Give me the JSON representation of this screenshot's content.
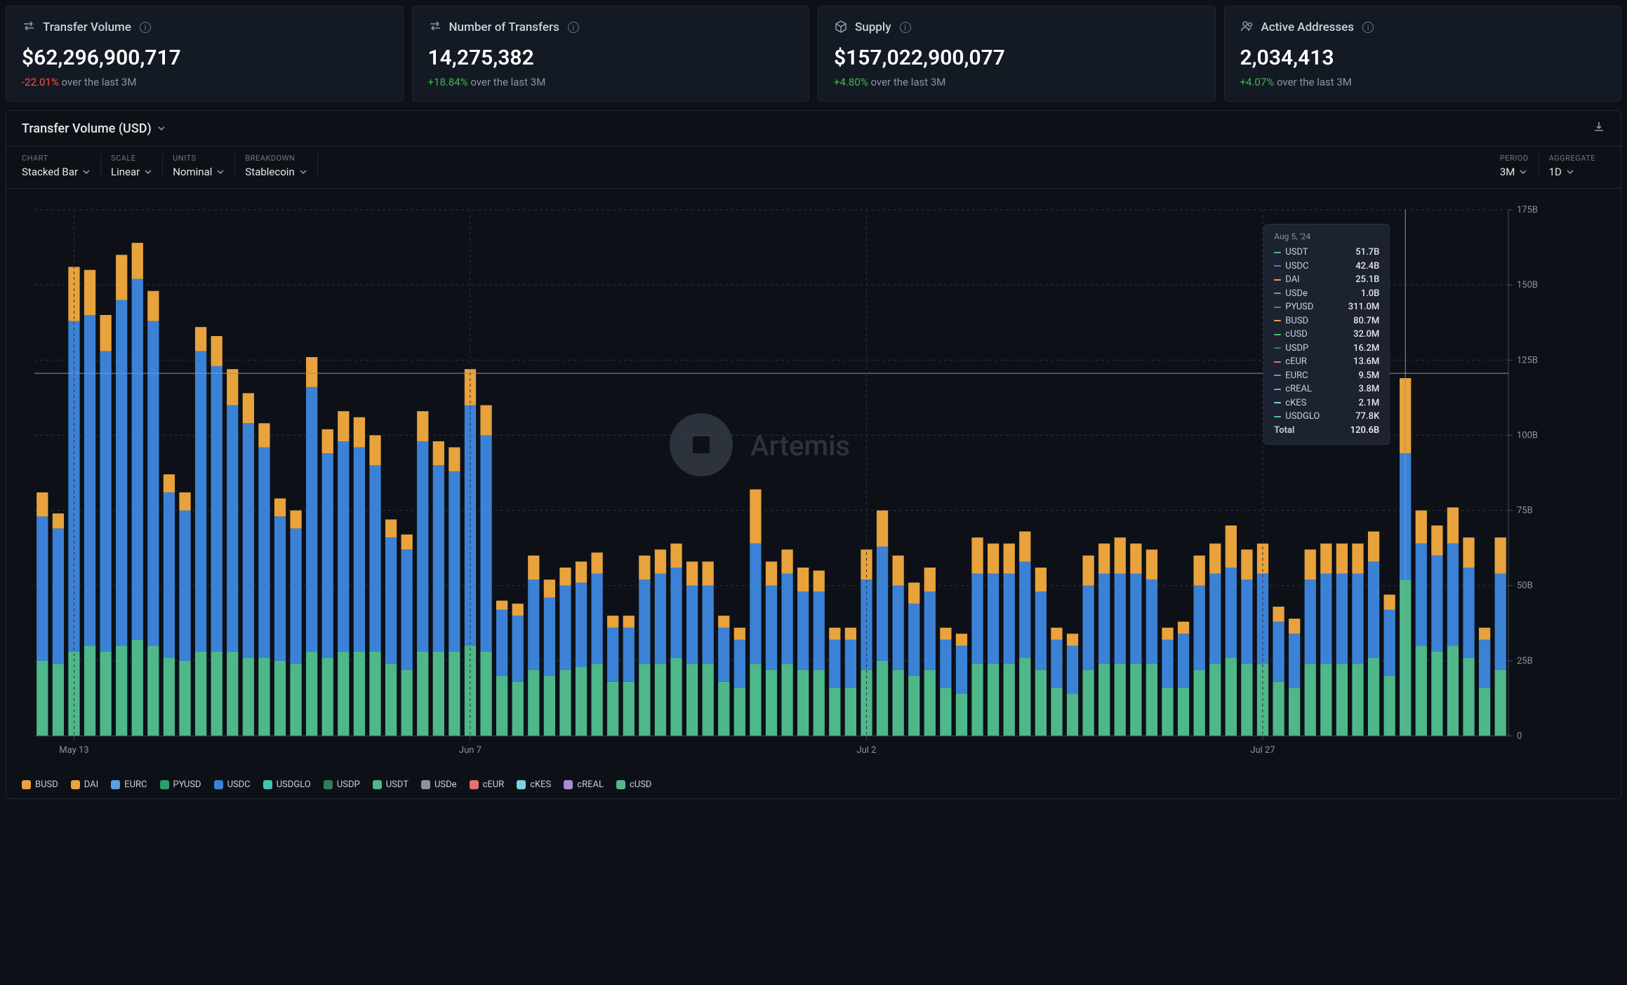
{
  "metrics": [
    {
      "icon": "transfer",
      "title": "Transfer Volume",
      "value": "$62,296,900,717",
      "change_pct": "-22.01%",
      "change_dir": "neg",
      "period_text": "over the last 3M"
    },
    {
      "icon": "transfer",
      "title": "Number of Transfers",
      "value": "14,275,382",
      "change_pct": "+18.84%",
      "change_dir": "pos",
      "period_text": "over the last 3M"
    },
    {
      "icon": "supply",
      "title": "Supply",
      "value": "$157,022,900,077",
      "change_pct": "+4.80%",
      "change_dir": "pos",
      "period_text": "over the last 3M"
    },
    {
      "icon": "users",
      "title": "Active Addresses",
      "value": "2,034,413",
      "change_pct": "+4.07%",
      "change_dir": "pos",
      "period_text": "over the last 3M"
    }
  ],
  "panel": {
    "title": "Transfer Volume (USD)"
  },
  "controls": {
    "chart": {
      "label": "CHART",
      "value": "Stacked Bar"
    },
    "scale": {
      "label": "SCALE",
      "value": "Linear"
    },
    "units": {
      "label": "UNITS",
      "value": "Nominal"
    },
    "breakdown": {
      "label": "BREAKDOWN",
      "value": "Stablecoin"
    },
    "period": {
      "label": "PERIOD",
      "value": "3M"
    },
    "aggregate": {
      "label": "AGGREGATE",
      "value": "1D"
    }
  },
  "chart": {
    "type": "stacked-bar",
    "ylim": [
      0,
      175
    ],
    "y_ticks": [
      0,
      25,
      50,
      75,
      100,
      125,
      150,
      175
    ],
    "y_tick_labels": [
      "0",
      "25B",
      "50B",
      "75B",
      "100B",
      "125B",
      "150B",
      "175B"
    ],
    "ref_line": 120.6,
    "x_tick_labels": [
      "May 13",
      "Jun 7",
      "Jul 2",
      "Jul 27"
    ],
    "x_tick_positions": [
      2,
      27,
      52,
      77
    ],
    "background_color": "#0d1117",
    "grid_color": "#2a3240",
    "watermark": "Artemis",
    "cursor_index": 86,
    "colors": {
      "USDT": "#4fb88a",
      "USDC": "#3b82d6",
      "DAI": "#e8a33d",
      "USDe": "#8b949e",
      "PYUSD": "#2e9e6f",
      "BUSD": "#e8a33d",
      "cUSD": "#4fb88a",
      "USDP": "#2e7d5a",
      "cEUR": "#e76f6f",
      "EURC": "#5aa0e0",
      "cREAL": "#a98bd6",
      "cKES": "#7dd3e0",
      "USDGLO": "#3ec7b0",
      "Total": "#ffffff"
    },
    "bar_width": 0.72,
    "series_order": [
      "USDT",
      "USDC",
      "DAI"
    ],
    "bars": [
      {
        "usdt": 25,
        "usdc": 48,
        "dai": 8
      },
      {
        "usdt": 24,
        "usdc": 45,
        "dai": 5
      },
      {
        "usdt": 28,
        "usdc": 110,
        "dai": 18
      },
      {
        "usdt": 30,
        "usdc": 110,
        "dai": 15
      },
      {
        "usdt": 28,
        "usdc": 100,
        "dai": 12
      },
      {
        "usdt": 30,
        "usdc": 115,
        "dai": 15
      },
      {
        "usdt": 32,
        "usdc": 120,
        "dai": 12
      },
      {
        "usdt": 30,
        "usdc": 108,
        "dai": 10
      },
      {
        "usdt": 26,
        "usdc": 55,
        "dai": 6
      },
      {
        "usdt": 25,
        "usdc": 50,
        "dai": 6
      },
      {
        "usdt": 28,
        "usdc": 100,
        "dai": 8
      },
      {
        "usdt": 28,
        "usdc": 95,
        "dai": 10
      },
      {
        "usdt": 28,
        "usdc": 82,
        "dai": 12
      },
      {
        "usdt": 26,
        "usdc": 78,
        "dai": 10
      },
      {
        "usdt": 26,
        "usdc": 70,
        "dai": 8
      },
      {
        "usdt": 25,
        "usdc": 48,
        "dai": 6
      },
      {
        "usdt": 24,
        "usdc": 45,
        "dai": 6
      },
      {
        "usdt": 28,
        "usdc": 88,
        "dai": 10
      },
      {
        "usdt": 26,
        "usdc": 68,
        "dai": 8
      },
      {
        "usdt": 28,
        "usdc": 70,
        "dai": 10
      },
      {
        "usdt": 28,
        "usdc": 68,
        "dai": 10
      },
      {
        "usdt": 28,
        "usdc": 62,
        "dai": 10
      },
      {
        "usdt": 24,
        "usdc": 42,
        "dai": 6
      },
      {
        "usdt": 22,
        "usdc": 40,
        "dai": 5
      },
      {
        "usdt": 28,
        "usdc": 70,
        "dai": 10
      },
      {
        "usdt": 28,
        "usdc": 62,
        "dai": 8
      },
      {
        "usdt": 28,
        "usdc": 60,
        "dai": 8
      },
      {
        "usdt": 30,
        "usdc": 80,
        "dai": 12
      },
      {
        "usdt": 28,
        "usdc": 72,
        "dai": 10
      },
      {
        "usdt": 20,
        "usdc": 22,
        "dai": 3
      },
      {
        "usdt": 18,
        "usdc": 22,
        "dai": 4
      },
      {
        "usdt": 22,
        "usdc": 30,
        "dai": 8
      },
      {
        "usdt": 20,
        "usdc": 26,
        "dai": 6
      },
      {
        "usdt": 22,
        "usdc": 28,
        "dai": 6
      },
      {
        "usdt": 23,
        "usdc": 28,
        "dai": 7
      },
      {
        "usdt": 24,
        "usdc": 30,
        "dai": 7
      },
      {
        "usdt": 18,
        "usdc": 18,
        "dai": 4
      },
      {
        "usdt": 18,
        "usdc": 18,
        "dai": 4
      },
      {
        "usdt": 24,
        "usdc": 28,
        "dai": 8
      },
      {
        "usdt": 24,
        "usdc": 30,
        "dai": 8
      },
      {
        "usdt": 26,
        "usdc": 30,
        "dai": 8
      },
      {
        "usdt": 24,
        "usdc": 26,
        "dai": 8
      },
      {
        "usdt": 24,
        "usdc": 26,
        "dai": 8
      },
      {
        "usdt": 18,
        "usdc": 18,
        "dai": 4
      },
      {
        "usdt": 16,
        "usdc": 16,
        "dai": 4
      },
      {
        "usdt": 24,
        "usdc": 40,
        "dai": 18
      },
      {
        "usdt": 22,
        "usdc": 28,
        "dai": 8
      },
      {
        "usdt": 24,
        "usdc": 30,
        "dai": 8
      },
      {
        "usdt": 22,
        "usdc": 26,
        "dai": 8
      },
      {
        "usdt": 22,
        "usdc": 26,
        "dai": 7
      },
      {
        "usdt": 16,
        "usdc": 16,
        "dai": 4
      },
      {
        "usdt": 16,
        "usdc": 16,
        "dai": 4
      },
      {
        "usdt": 22,
        "usdc": 30,
        "dai": 10
      },
      {
        "usdt": 25,
        "usdc": 38,
        "dai": 12
      },
      {
        "usdt": 22,
        "usdc": 28,
        "dai": 10
      },
      {
        "usdt": 20,
        "usdc": 24,
        "dai": 7
      },
      {
        "usdt": 22,
        "usdc": 26,
        "dai": 8
      },
      {
        "usdt": 16,
        "usdc": 16,
        "dai": 4
      },
      {
        "usdt": 14,
        "usdc": 16,
        "dai": 4
      },
      {
        "usdt": 24,
        "usdc": 30,
        "dai": 12
      },
      {
        "usdt": 24,
        "usdc": 30,
        "dai": 10
      },
      {
        "usdt": 24,
        "usdc": 30,
        "dai": 10
      },
      {
        "usdt": 26,
        "usdc": 32,
        "dai": 10
      },
      {
        "usdt": 22,
        "usdc": 26,
        "dai": 8
      },
      {
        "usdt": 16,
        "usdc": 16,
        "dai": 4
      },
      {
        "usdt": 14,
        "usdc": 16,
        "dai": 4
      },
      {
        "usdt": 22,
        "usdc": 28,
        "dai": 10
      },
      {
        "usdt": 24,
        "usdc": 30,
        "dai": 10
      },
      {
        "usdt": 24,
        "usdc": 30,
        "dai": 12
      },
      {
        "usdt": 24,
        "usdc": 30,
        "dai": 10
      },
      {
        "usdt": 24,
        "usdc": 28,
        "dai": 10
      },
      {
        "usdt": 16,
        "usdc": 16,
        "dai": 4
      },
      {
        "usdt": 16,
        "usdc": 18,
        "dai": 4
      },
      {
        "usdt": 22,
        "usdc": 28,
        "dai": 10
      },
      {
        "usdt": 24,
        "usdc": 30,
        "dai": 10
      },
      {
        "usdt": 26,
        "usdc": 30,
        "dai": 14
      },
      {
        "usdt": 24,
        "usdc": 28,
        "dai": 10
      },
      {
        "usdt": 24,
        "usdc": 30,
        "dai": 10
      },
      {
        "usdt": 18,
        "usdc": 20,
        "dai": 5
      },
      {
        "usdt": 16,
        "usdc": 18,
        "dai": 5
      },
      {
        "usdt": 24,
        "usdc": 28,
        "dai": 10
      },
      {
        "usdt": 24,
        "usdc": 30,
        "dai": 10
      },
      {
        "usdt": 24,
        "usdc": 30,
        "dai": 10
      },
      {
        "usdt": 24,
        "usdc": 30,
        "dai": 10
      },
      {
        "usdt": 26,
        "usdc": 32,
        "dai": 10
      },
      {
        "usdt": 20,
        "usdc": 22,
        "dai": 5
      },
      {
        "usdt": 52,
        "usdc": 42,
        "dai": 25
      },
      {
        "usdt": 30,
        "usdc": 34,
        "dai": 11
      },
      {
        "usdt": 28,
        "usdc": 32,
        "dai": 10
      },
      {
        "usdt": 30,
        "usdc": 34,
        "dai": 12
      },
      {
        "usdt": 26,
        "usdc": 30,
        "dai": 10
      },
      {
        "usdt": 16,
        "usdc": 16,
        "dai": 4
      },
      {
        "usdt": 22,
        "usdc": 32,
        "dai": 12
      }
    ]
  },
  "tooltip": {
    "date": "Aug 5, '24",
    "rows": [
      {
        "name": "USDT",
        "value": "51.7B",
        "color_key": "USDT"
      },
      {
        "name": "USDC",
        "value": "42.4B",
        "color_key": "USDC"
      },
      {
        "name": "DAI",
        "value": "25.1B",
        "color_key": "DAI"
      },
      {
        "name": "USDe",
        "value": "1.0B",
        "color_key": "USDe"
      },
      {
        "name": "PYUSD",
        "value": "311.0M",
        "color_key": "PYUSD"
      },
      {
        "name": "BUSD",
        "value": "80.7M",
        "color_key": "BUSD"
      },
      {
        "name": "cUSD",
        "value": "32.0M",
        "color_key": "cUSD"
      },
      {
        "name": "USDP",
        "value": "16.2M",
        "color_key": "USDP"
      },
      {
        "name": "cEUR",
        "value": "13.6M",
        "color_key": "cEUR"
      },
      {
        "name": "EURC",
        "value": "9.5M",
        "color_key": "EURC"
      },
      {
        "name": "cREAL",
        "value": "3.8M",
        "color_key": "cREAL"
      },
      {
        "name": "cKES",
        "value": "2.1M",
        "color_key": "cKES"
      },
      {
        "name": "USDGLO",
        "value": "77.8K",
        "color_key": "USDGLO"
      }
    ],
    "total": {
      "name": "Total",
      "value": "120.6B"
    }
  },
  "legend": [
    {
      "name": "BUSD",
      "color_key": "BUSD"
    },
    {
      "name": "DAI",
      "color_key": "DAI"
    },
    {
      "name": "EURC",
      "color_key": "EURC"
    },
    {
      "name": "PYUSD",
      "color_key": "PYUSD"
    },
    {
      "name": "USDC",
      "color_key": "USDC"
    },
    {
      "name": "USDGLO",
      "color_key": "USDGLO"
    },
    {
      "name": "USDP",
      "color_key": "USDP"
    },
    {
      "name": "USDT",
      "color_key": "USDT"
    },
    {
      "name": "USDe",
      "color_key": "USDe"
    },
    {
      "name": "cEUR",
      "color_key": "cEUR"
    },
    {
      "name": "cKES",
      "color_key": "cKES"
    },
    {
      "name": "cREAL",
      "color_key": "cREAL"
    },
    {
      "name": "cUSD",
      "color_key": "cUSD"
    }
  ]
}
